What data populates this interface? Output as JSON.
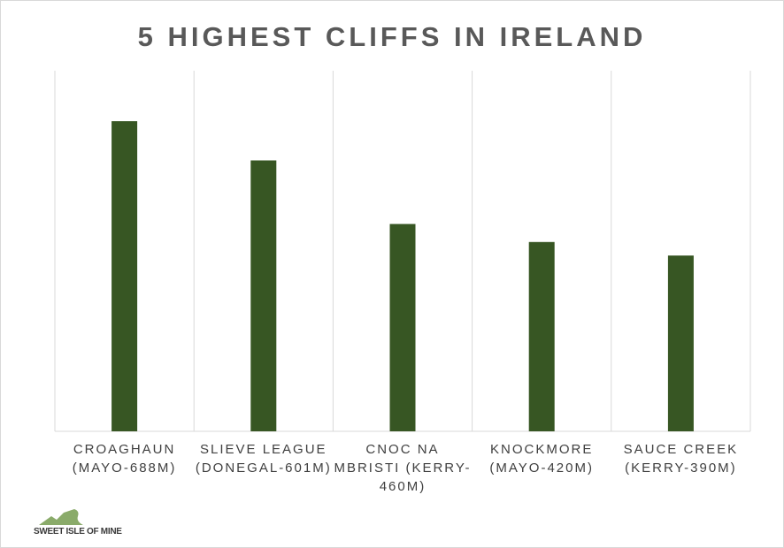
{
  "chart_data": {
    "type": "bar",
    "title": "5 HIGHEST CLIFFS IN IRELAND",
    "categories": [
      "CROAGHAUN (MAYO-688M)",
      "SLIEVE LEAGUE (DONEGAL-601M)",
      "CNOC NA MBRISTI (KERRY-460M)",
      "KNOCKMORE (MAYO-420M)",
      "SAUCE CREEK (KERRY-390M)"
    ],
    "values": [
      688,
      601,
      460,
      420,
      390
    ],
    "color": "#375623",
    "ylim": [
      0,
      800
    ],
    "grid": true
  },
  "logo_text": "SWEET ISLE OF MINE"
}
